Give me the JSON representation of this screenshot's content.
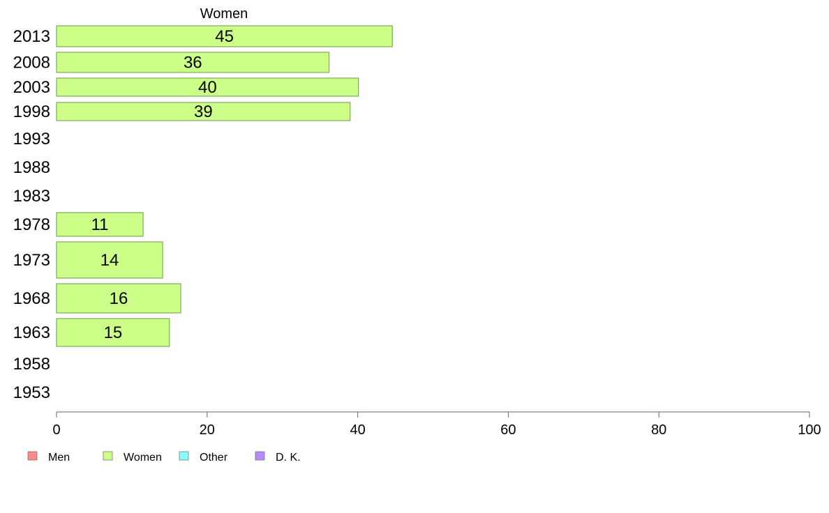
{
  "chart_data": {
    "type": "bar",
    "orientation": "horizontal",
    "title": "Women",
    "categories": [
      "2013",
      "2008",
      "2003",
      "1998",
      "1993",
      "1988",
      "1983",
      "1978",
      "1973",
      "1968",
      "1963",
      "1958",
      "1953"
    ],
    "series": [
      {
        "name": "Women",
        "color": "#ccff88",
        "values": [
          44.6,
          36.2,
          40.1,
          39.0,
          null,
          null,
          null,
          11.5,
          14.1,
          16.5,
          15.0,
          null,
          null
        ],
        "data_labels": [
          "45",
          "36",
          "40",
          "39",
          "",
          "",
          "",
          "11",
          "14",
          "16",
          "15",
          "",
          ""
        ]
      }
    ],
    "xlim": [
      0,
      100
    ],
    "x_ticks": [
      "0",
      "20",
      "40",
      "60",
      "80",
      "100"
    ],
    "grid": false,
    "legend_position": "bottom-left",
    "legend": [
      {
        "label": "Men",
        "color": "#ff8888"
      },
      {
        "label": "Women",
        "color": "#ccff88"
      },
      {
        "label": "Other",
        "color": "#88ffff"
      },
      {
        "label": "D. K.",
        "color": "#bb88ff"
      }
    ],
    "bar_edge_color": "#6a9a4a"
  }
}
